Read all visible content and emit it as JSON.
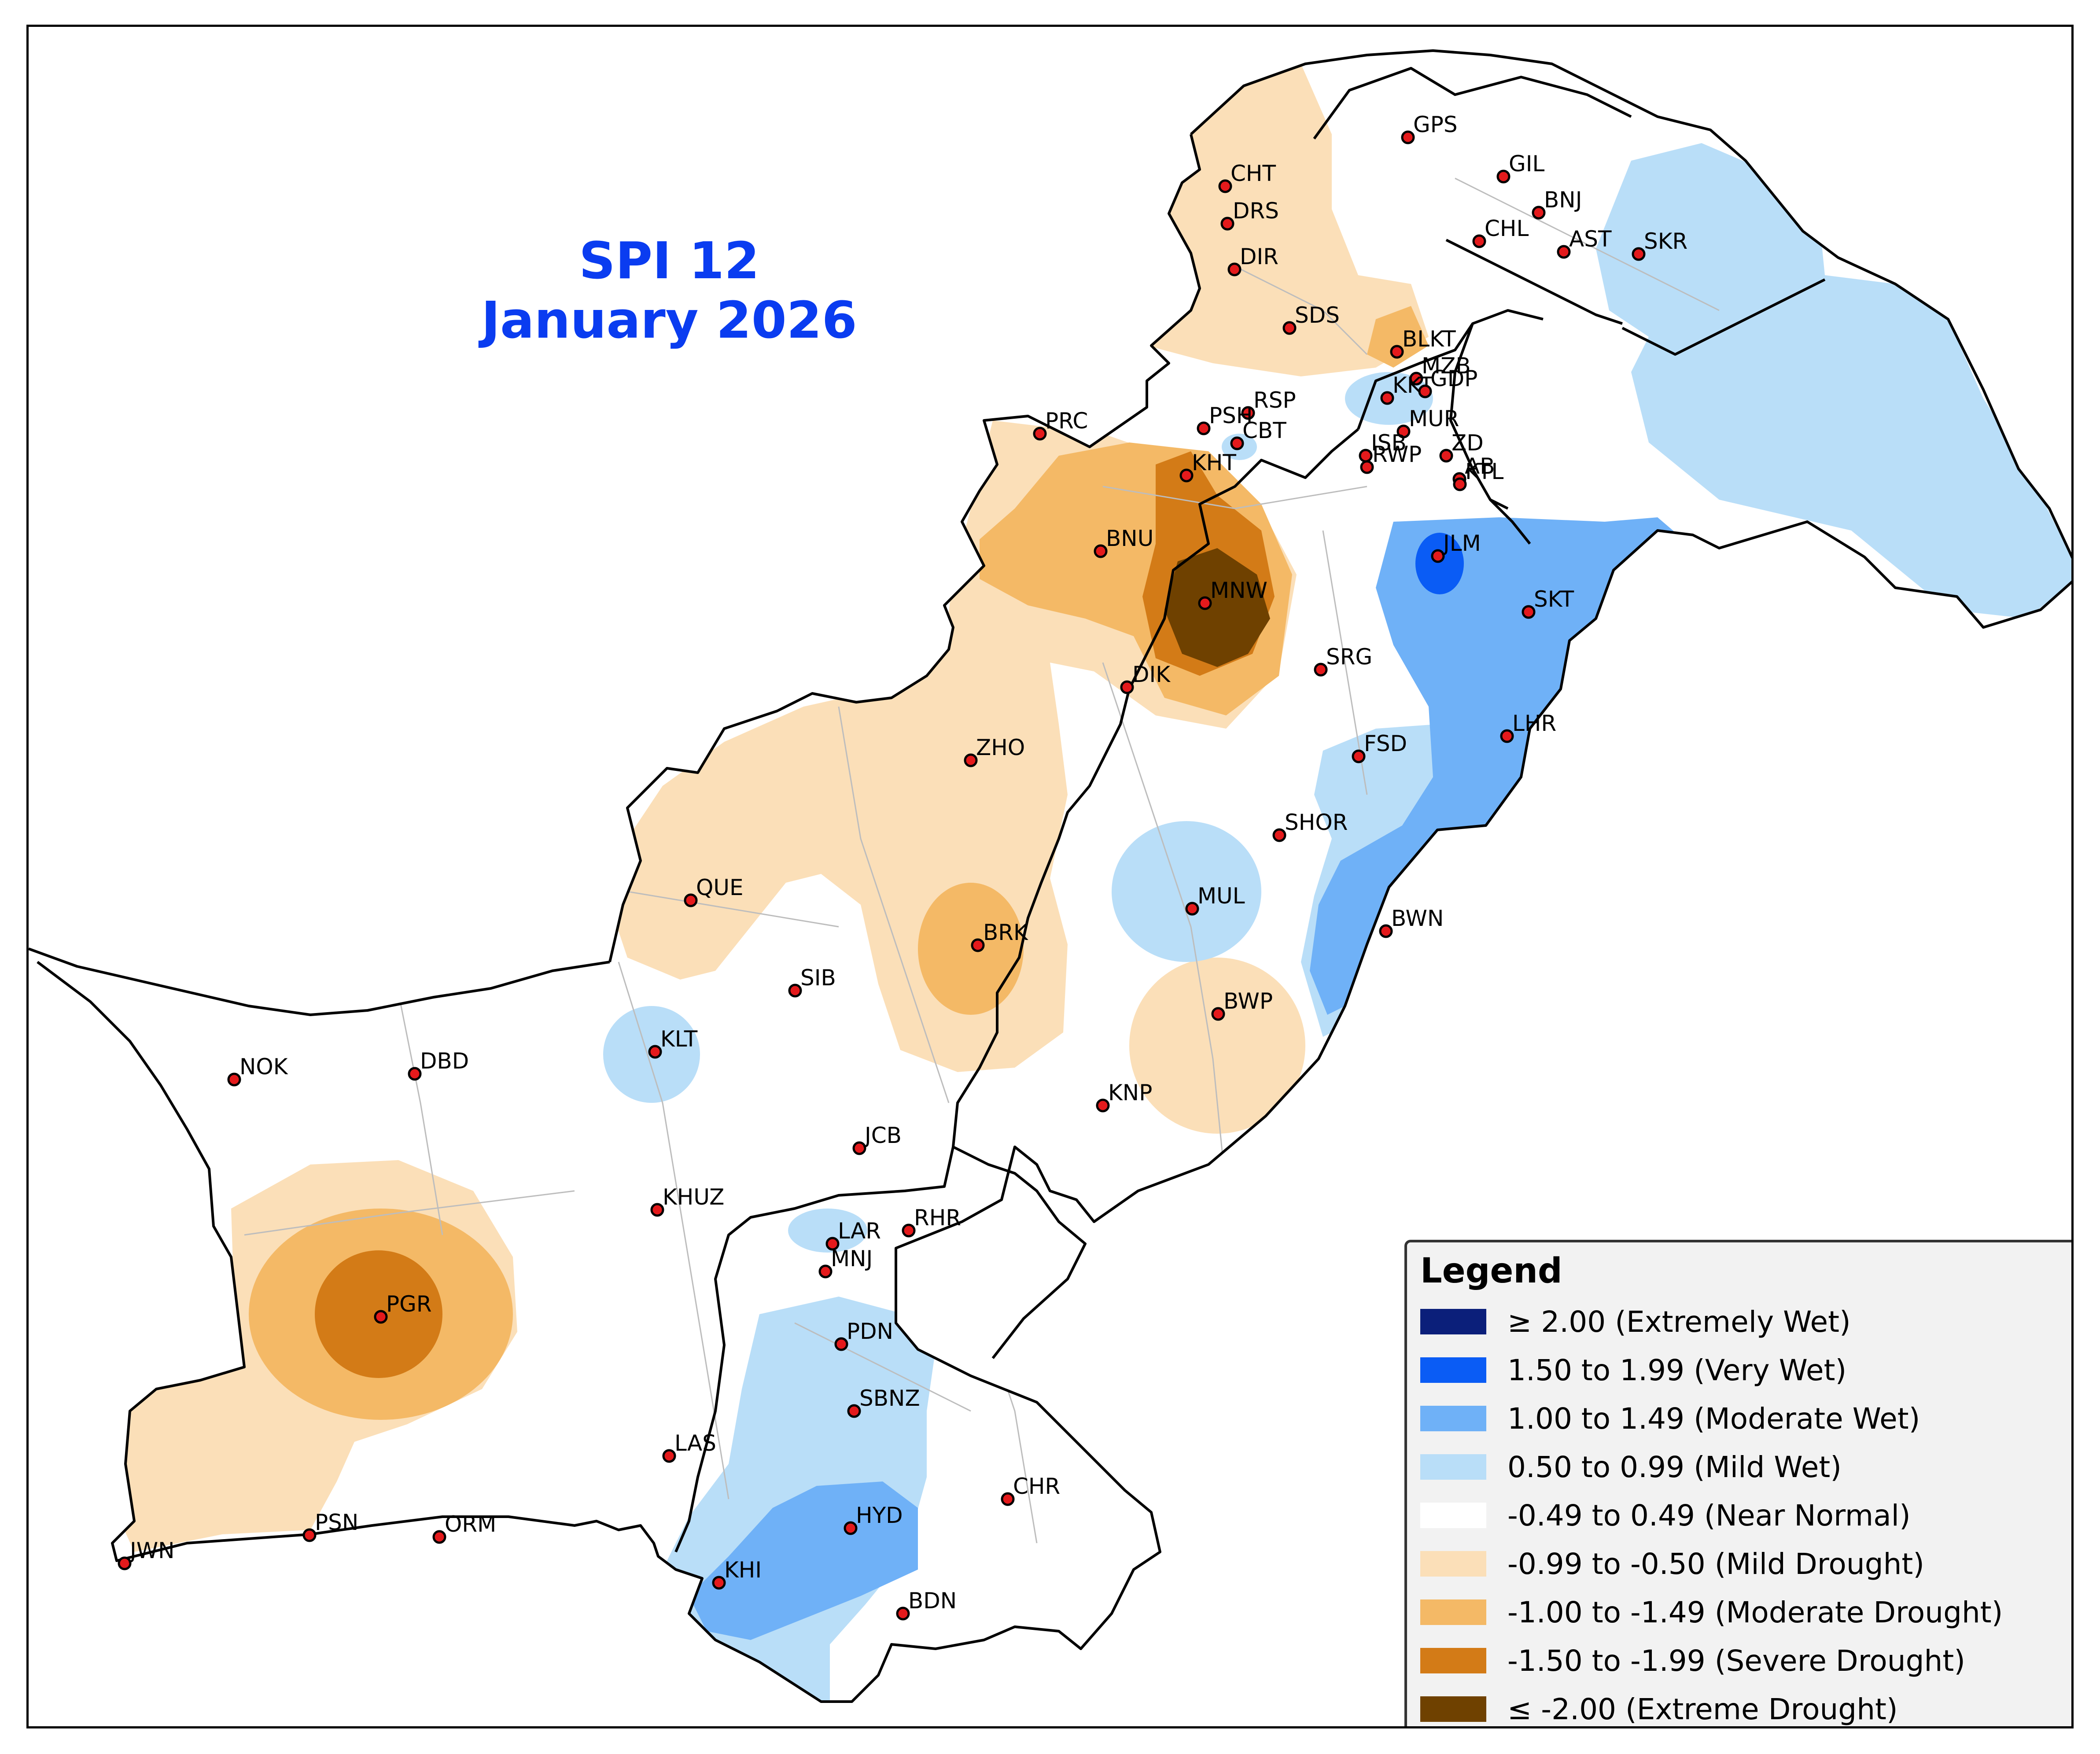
{
  "title": {
    "line1": "SPI 12",
    "line2": "January 2026"
  },
  "legend": {
    "title": "Legend",
    "items": [
      {
        "label": "≥ 2.00 (Extremely Wet)",
        "color": "#0b1f7a"
      },
      {
        "label": "1.50 to 1.99 (Very Wet)",
        "color": "#0a5cf5"
      },
      {
        "label": "1.00 to 1.49 (Moderate Wet)",
        "color": "#6fb1f7"
      },
      {
        "label": "0.50 to 0.99 (Mild Wet)",
        "color": "#b9def8"
      },
      {
        "label": "-0.49 to 0.49 (Near Normal)",
        "color": "#ffffff"
      },
      {
        "label": "-0.99 to -0.50 (Mild Drought)",
        "color": "#fbdfb8"
      },
      {
        "label": "-1.00 to -1.49 (Moderate Drought)",
        "color": "#f4b966"
      },
      {
        "label": "-1.50 to -1.99 (Severe Drought)",
        "color": "#d37b17"
      },
      {
        "label": "≤ -2.00 (Extreme Drought)",
        "color": "#6f4100"
      }
    ]
  },
  "stations": [
    {
      "code": "GPS"
    },
    {
      "code": "GIL"
    },
    {
      "code": "BNJ"
    },
    {
      "code": "CHL"
    },
    {
      "code": "AST"
    },
    {
      "code": "SKR"
    },
    {
      "code": "CHT"
    },
    {
      "code": "DRS"
    },
    {
      "code": "DIR"
    },
    {
      "code": "SDS"
    },
    {
      "code": "BLKT"
    },
    {
      "code": "MZB"
    },
    {
      "code": "KKT"
    },
    {
      "code": "GDP"
    },
    {
      "code": "RSP"
    },
    {
      "code": "PSH"
    },
    {
      "code": "MUR"
    },
    {
      "code": "PRC"
    },
    {
      "code": "CBT"
    },
    {
      "code": "ISB"
    },
    {
      "code": "ZD"
    },
    {
      "code": "KHT"
    },
    {
      "code": "RWP"
    },
    {
      "code": "AB"
    },
    {
      "code": "KTL"
    },
    {
      "code": "BNU"
    },
    {
      "code": "JLM"
    },
    {
      "code": "MNW"
    },
    {
      "code": "SKT"
    },
    {
      "code": "SRG"
    },
    {
      "code": "DIK"
    },
    {
      "code": "LHR"
    },
    {
      "code": "ZHO"
    },
    {
      "code": "FSD"
    },
    {
      "code": "SHOR"
    },
    {
      "code": "QUE"
    },
    {
      "code": "MUL"
    },
    {
      "code": "BRK"
    },
    {
      "code": "BWN"
    },
    {
      "code": "SIB"
    },
    {
      "code": "BWP"
    },
    {
      "code": "KLT"
    },
    {
      "code": "NOK"
    },
    {
      "code": "DBD"
    },
    {
      "code": "KNP"
    },
    {
      "code": "JCB"
    },
    {
      "code": "KHUZ"
    },
    {
      "code": "LAR"
    },
    {
      "code": "RHR"
    },
    {
      "code": "MNJ"
    },
    {
      "code": "PGR"
    },
    {
      "code": "PDN"
    },
    {
      "code": "SBNZ"
    },
    {
      "code": "LAS"
    },
    {
      "code": "CHR"
    },
    {
      "code": "PSN"
    },
    {
      "code": "ORM"
    },
    {
      "code": "HYD"
    },
    {
      "code": "JWN"
    },
    {
      "code": "KHI"
    },
    {
      "code": "BDN"
    }
  ]
}
